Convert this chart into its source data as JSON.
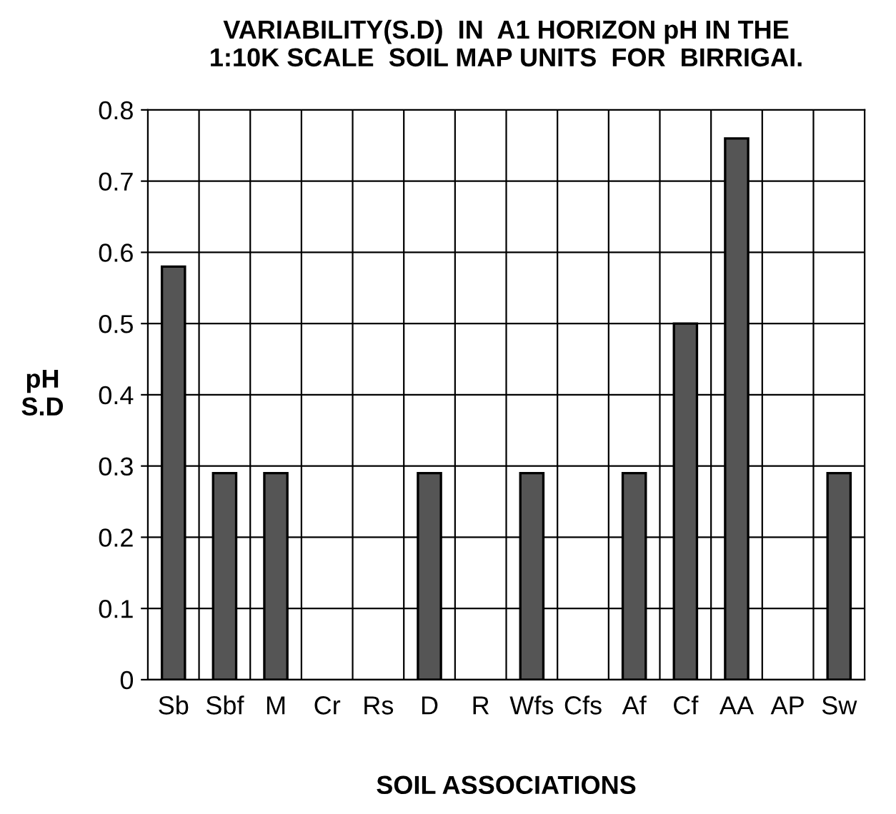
{
  "chart_data": {
    "type": "bar",
    "title": "VARIABILITY(S.D)  IN  A1 HORIZON pH IN THE\n1:10K SCALE  SOIL MAP UNITS  FOR  BIRRIGAI.",
    "xlabel": "SOIL ASSOCIATIONS",
    "ylabel": "pH\nS.D",
    "categories": [
      "Sb",
      "Sbf",
      "M",
      "Cr",
      "Rs",
      "D",
      "R",
      "Wfs",
      "Cfs",
      "Af",
      "Cf",
      "AA",
      "AP",
      "Sw"
    ],
    "values": [
      0.58,
      0.29,
      0.29,
      0,
      0,
      0.29,
      0,
      0.29,
      0,
      0.29,
      0.5,
      0.76,
      0,
      0.29
    ],
    "color": "#555555",
    "ylim": [
      0,
      0.8
    ],
    "yticks": [
      0,
      0.1,
      0.2,
      0.3,
      0.4,
      0.5,
      0.6,
      0.7,
      0.8
    ],
    "grid": true
  }
}
